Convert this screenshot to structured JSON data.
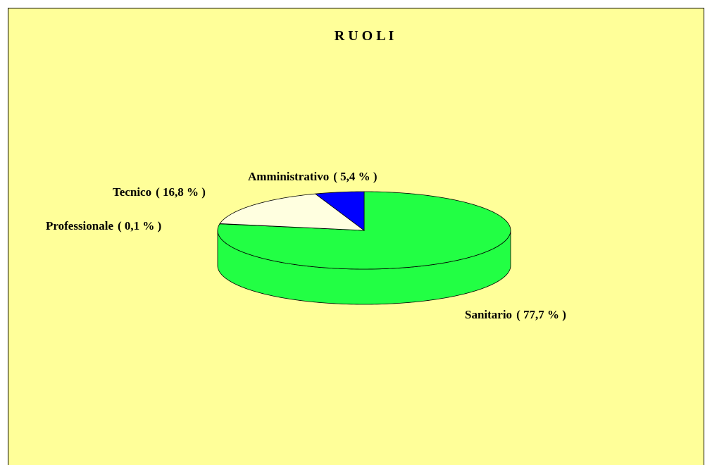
{
  "chart_data": {
    "type": "pie3d",
    "title": "R U O L I",
    "categories": [
      "Sanitario",
      "Professionale",
      "Tecnico",
      "Amministrativo"
    ],
    "values": [
      77.7,
      0.1,
      16.8,
      5.4
    ],
    "value_labels": [
      "( 77,7 % )",
      "( 0,1 % )",
      "( 16,8 % )",
      "( 5,4 % )"
    ],
    "colors": [
      "#22ff44",
      "#ffffcc",
      "#ffffe0",
      "#0000ff"
    ],
    "background": "#ffff99"
  }
}
